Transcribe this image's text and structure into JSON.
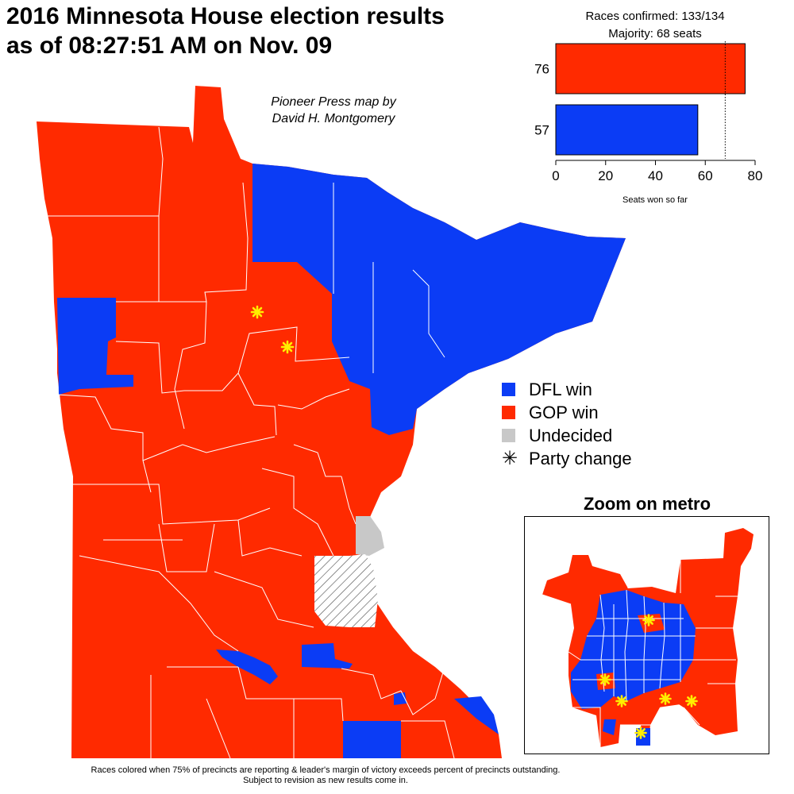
{
  "title": {
    "line1": "2016 Minnesota House election results",
    "line2": "as of 08:27:51 AM on Nov. 09"
  },
  "credit": {
    "line1": "Pioneer Press map by",
    "line2": "David H. Montgomery"
  },
  "summary": {
    "races_confirmed": "Races confirmed: 133/134",
    "majority": "Majority: 68 seats"
  },
  "colors": {
    "dfl": "#0b3cf5",
    "gop": "#ff2a00",
    "undecided": "#c8c8c8",
    "change_star": "#ffee00"
  },
  "chart_data": {
    "type": "bar",
    "orientation": "horizontal",
    "categories": [
      "76",
      "57"
    ],
    "values": [
      76,
      57
    ],
    "bar_colors": [
      "#ff2a00",
      "#0b3cf5"
    ],
    "xlabel": "Seats won so far",
    "xlim": [
      0,
      80
    ],
    "xticks": [
      "0",
      "20",
      "40",
      "60",
      "80"
    ],
    "majority_line": 68
  },
  "legend": {
    "items": [
      {
        "label": "DFL win",
        "color": "#0b3cf5"
      },
      {
        "label": "GOP win",
        "color": "#ff2a00"
      },
      {
        "label": "Undecided",
        "color": "#c8c8c8"
      }
    ],
    "party_change": "Party change",
    "party_change_symbol": "✳"
  },
  "zoom": {
    "title": "Zoom on metro"
  },
  "footnote": {
    "line1": "Races colored when 75% of precincts are reporting & leader's margin of victory exceeds percent of precincts outstanding.",
    "line2": "Subject to revision as new results come in."
  }
}
